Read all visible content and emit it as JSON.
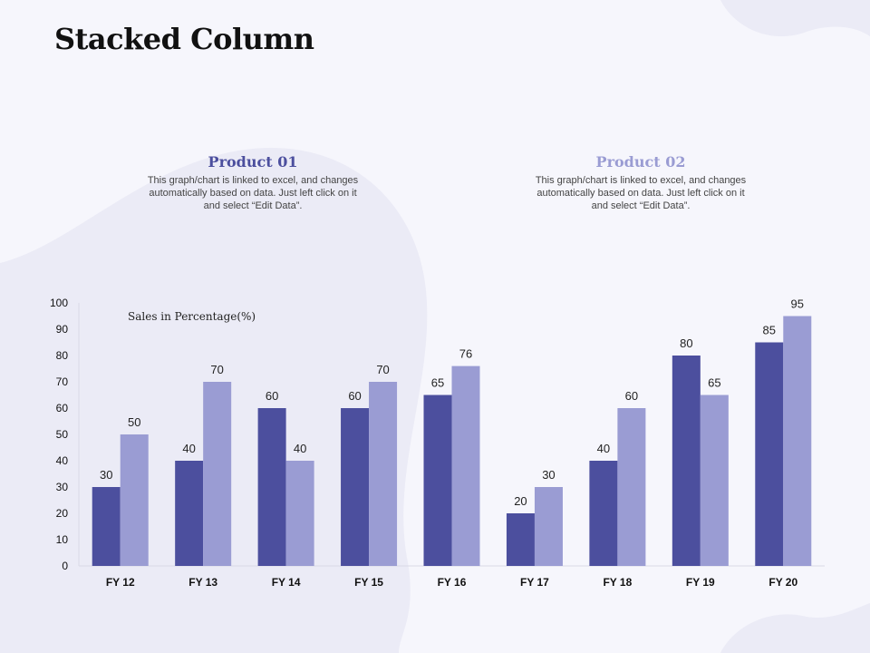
{
  "page": {
    "title": "Stacked Column"
  },
  "legend": [
    {
      "title": "Product 01",
      "color": "#4c4f9e",
      "description": [
        "This graph/chart is linked to excel, and changes",
        "automatically based on data. Just left click on it",
        "and select “Edit Data”."
      ]
    },
    {
      "title": "Product 02",
      "color": "#9a9cd3",
      "description": [
        "This graph/chart is linked to excel, and changes",
        "automatically based on data. Just left click on it",
        "and select “Edit Data”."
      ]
    }
  ],
  "colors": {
    "background": "#f6f6fc",
    "blob": "#ebebf6",
    "series1": "#4c4f9e",
    "series2": "#9a9cd3"
  },
  "chart_data": {
    "type": "bar",
    "title": "",
    "ylabel": "Sales in Percentage(%)",
    "xlabel": "",
    "categories": [
      "FY 12",
      "FY 13",
      "FY 14",
      "FY 15",
      "FY 16",
      "FY 17",
      "FY 18",
      "FY 19",
      "FY 20"
    ],
    "series": [
      {
        "name": "Product 01",
        "values": [
          30,
          40,
          60,
          60,
          65,
          20,
          40,
          80,
          85
        ]
      },
      {
        "name": "Product 02",
        "values": [
          50,
          70,
          40,
          70,
          76,
          30,
          60,
          65,
          95
        ]
      }
    ],
    "ylim": [
      0,
      100
    ],
    "yticks": [
      0,
      10,
      20,
      30,
      40,
      50,
      60,
      70,
      80,
      90,
      100
    ],
    "grid": false,
    "data_labels": true
  }
}
